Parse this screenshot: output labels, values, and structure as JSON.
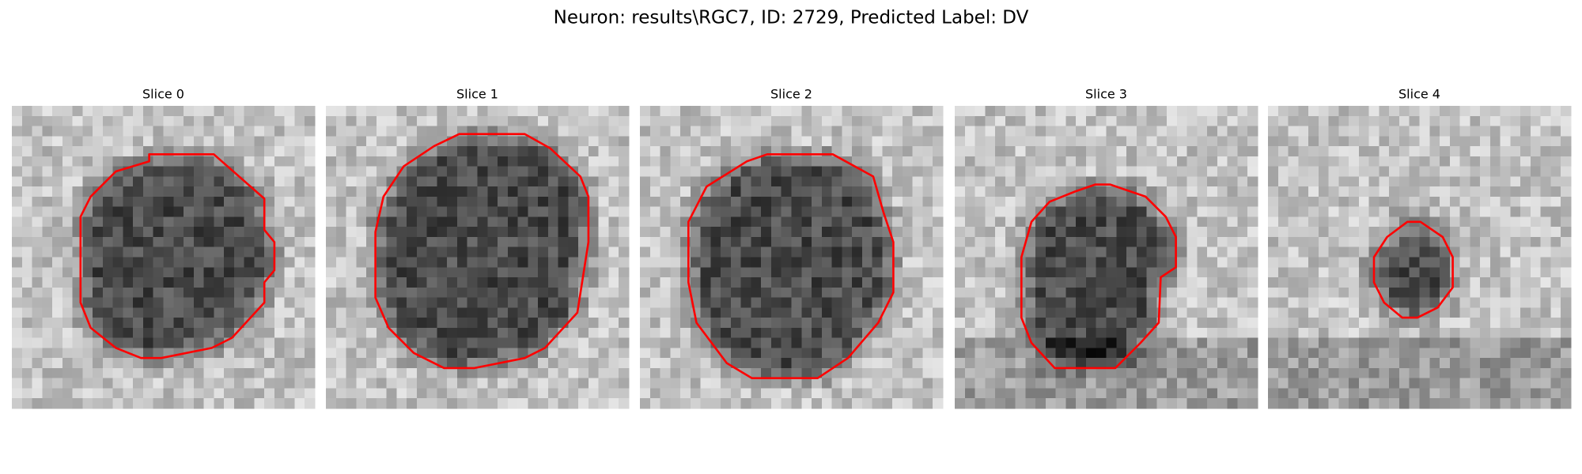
{
  "title": "Neuron: results\\RGC7, ID: 2729, Predicted Label: DV",
  "panels": [
    {
      "title": "Slice 0"
    },
    {
      "title": "Slice 1"
    },
    {
      "title": "Slice 2"
    },
    {
      "title": "Slice 3"
    },
    {
      "title": "Slice 4"
    }
  ]
}
